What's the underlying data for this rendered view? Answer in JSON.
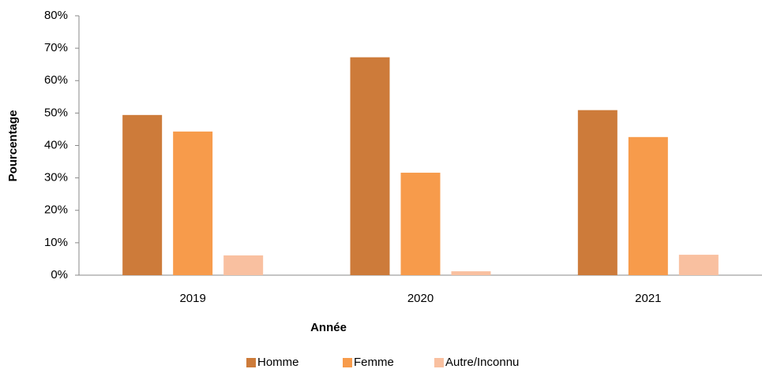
{
  "chart_data": {
    "type": "bar",
    "categories": [
      "2019",
      "2020",
      "2021"
    ],
    "series": [
      {
        "name": "Homme",
        "color": "#cd7b3a",
        "values": [
          49.4,
          67.2,
          50.9
        ]
      },
      {
        "name": "Femme",
        "color": "#f79b4b",
        "values": [
          44.3,
          31.6,
          42.6
        ]
      },
      {
        "name": "Autre/Inconnu",
        "color": "#f9c0a0",
        "values": [
          6.1,
          1.2,
          6.3
        ]
      }
    ],
    "ylim": [
      0,
      80
    ],
    "yticks": [
      {
        "value": 0,
        "label": "0%"
      },
      {
        "value": 10,
        "label": "10%"
      },
      {
        "value": 20,
        "label": "20%"
      },
      {
        "value": 30,
        "label": "30%"
      },
      {
        "value": 40,
        "label": "40%"
      },
      {
        "value": 50,
        "label": "50%"
      },
      {
        "value": 60,
        "label": "60%"
      },
      {
        "value": 70,
        "label": "70%"
      },
      {
        "value": 80,
        "label": "80%"
      }
    ],
    "xlabel": "Année",
    "ylabel": "Pourcentage",
    "legend": "bottom"
  }
}
